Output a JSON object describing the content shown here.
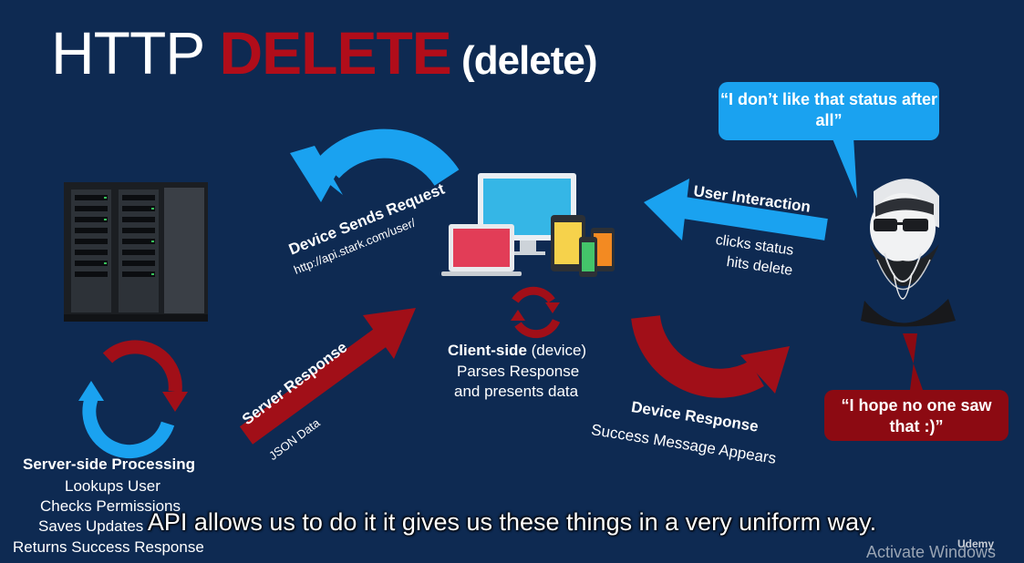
{
  "slide": {
    "title_part1": "HTTP ",
    "title_part2": "DELETE",
    "title_part3": " (delete)",
    "bubble_top": "“I don’t like that status after all”",
    "bubble_bottom": "“I hope no one saw that :)”",
    "device_sends_request": "Device Sends Request",
    "request_url": "http://api.stark.com/user/",
    "user_interaction": "User Interaction",
    "user_action_1": "clicks status",
    "user_action_2": "hits delete",
    "client_side_bold": "Client-side",
    "client_side_rest": " (device)",
    "client_line_1": "Parses Response",
    "client_line_2": "and presents data",
    "server_response": "Server Response",
    "json_data": "JSON Data",
    "device_response": "Device Response",
    "success_message": "Success Message Appears",
    "server_side_title": "Server-side Processing",
    "server_line_1": "Lookups User",
    "server_line_2": "Checks Permissions",
    "server_line_3": "Saves Updates",
    "server_line_4": "Returns Success Response"
  },
  "video": {
    "subtitle": "API allows us to do it it gives us these things in a very uniform way.",
    "watermark": "Activate Windows",
    "logo_text": "Udemy"
  },
  "colors": {
    "background": "#0e2a52",
    "accent_blue": "#1aa2f0",
    "accent_red": "#b10d1a",
    "dark_red": "#8c0a12"
  }
}
